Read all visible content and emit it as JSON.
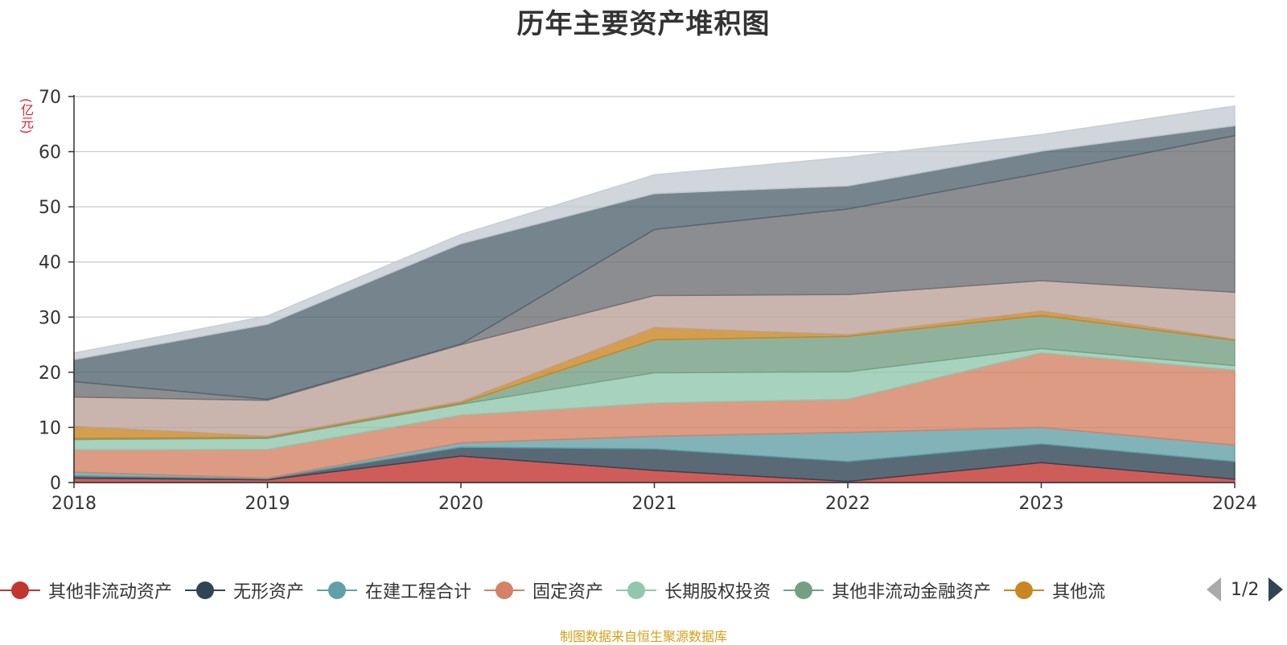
{
  "chart_data": {
    "type": "area",
    "title": "历年主要资产堆积图",
    "y_unit": "(亿元)",
    "x": [
      "2018",
      "2019",
      "2020",
      "2021",
      "2022",
      "2023",
      "2024"
    ],
    "ylim": [
      0,
      70
    ],
    "yticks": [
      "0",
      "10",
      "20",
      "30",
      "40",
      "50",
      "60",
      "70"
    ],
    "stacked": true,
    "grid": true,
    "series": [
      {
        "name": "其他非流动资产",
        "color": "#c23531",
        "values": [
          0.8,
          0.5,
          4.8,
          2.2,
          0.2,
          3.6,
          0.6
        ]
      },
      {
        "name": "无形资产",
        "color": "#2f4554",
        "values": [
          0.4,
          0.2,
          1.6,
          3.9,
          3.6,
          3.4,
          3.2
        ]
      },
      {
        "name": "在建工程合计",
        "color": "#61a0a8",
        "values": [
          0.7,
          0.1,
          0.8,
          2.3,
          5.3,
          3.0,
          3.0
        ]
      },
      {
        "name": "固定资产",
        "color": "#d48265",
        "values": [
          4.0,
          5.2,
          5.0,
          6.0,
          6.0,
          13.5,
          13.6
        ]
      },
      {
        "name": "长期股权投资",
        "color": "#91c7ae",
        "values": [
          1.9,
          2.0,
          2.0,
          5.5,
          5.0,
          0.8,
          0.8
        ]
      },
      {
        "name": "其他非流动金融资产",
        "color": "#749f83",
        "values": [
          0.2,
          0.2,
          0.2,
          6.0,
          6.4,
          6.0,
          4.6
        ]
      },
      {
        "name": "其他流",
        "color": "#ca8622",
        "values": [
          2.2,
          0.2,
          0.3,
          2.2,
          0.3,
          0.8,
          0.2
        ]
      },
      {
        "name": "",
        "color": "#bda29a",
        "values": [
          5.3,
          6.5,
          10.3,
          5.8,
          7.3,
          5.5,
          8.5
        ]
      },
      {
        "name": "",
        "color": "#6e7074",
        "values": [
          2.8,
          0.2,
          0.1,
          12.0,
          15.5,
          19.5,
          28.4
        ]
      },
      {
        "name": "",
        "color": "#546570",
        "values": [
          4.0,
          13.6,
          18.2,
          6.5,
          4.2,
          4.0,
          1.8
        ]
      },
      {
        "name": "",
        "color": "#c4ccd3",
        "values": [
          1.2,
          1.5,
          1.7,
          3.4,
          5.2,
          3.0,
          3.6
        ]
      }
    ]
  },
  "legend": {
    "pager_text": "1/2"
  },
  "source_note": "制图数据来自恒生聚源数据库"
}
